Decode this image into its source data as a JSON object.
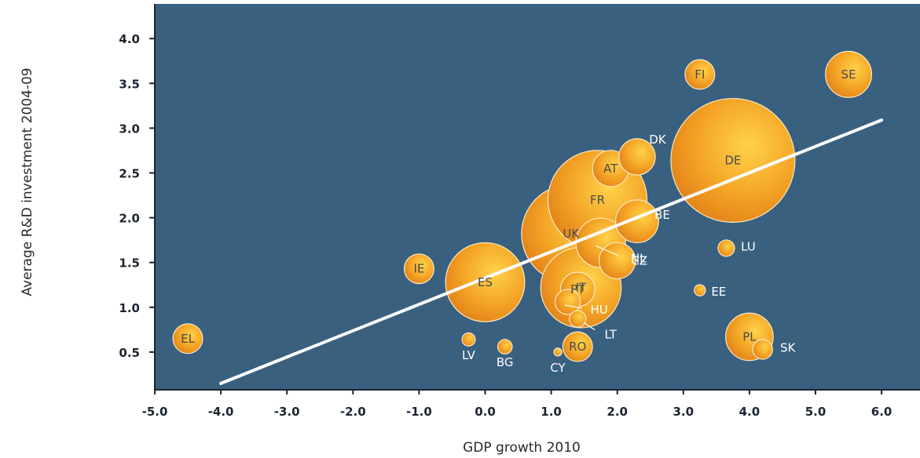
{
  "chart_data": {
    "type": "scatter",
    "title": "",
    "xlabel": "GDP growth 2010",
    "ylabel": "Average R&D investment 2004-09",
    "xlim": [
      -5.0,
      6.0
    ],
    "ylim": [
      0.0,
      4.3
    ],
    "x_ticks": [
      "-5.0",
      "-4.0",
      "-3.0",
      "-2.0",
      "-1.0",
      "0.0",
      "1.0",
      "2.0",
      "3.0",
      "4.0",
      "5.0",
      "6.0"
    ],
    "y_ticks": [
      "0.5",
      "1.0",
      "1.5",
      "2.0",
      "2.5",
      "3.0",
      "3.5",
      "4.0"
    ],
    "grid": false,
    "colors": {
      "plot_background": "#3a6080",
      "bubble_center": "#ffd24a",
      "bubble_edge": "#e07e18",
      "trendline": "#ffffff"
    },
    "points": [
      {
        "label": "EL",
        "x": -4.5,
        "y": 0.65,
        "size": 0.45,
        "label_inside": true
      },
      {
        "label": "LV",
        "x": -0.25,
        "y": 0.64,
        "size": 0.2,
        "label_inside": false
      },
      {
        "label": "BG",
        "x": 0.3,
        "y": 0.56,
        "size": 0.22,
        "label_inside": false
      },
      {
        "label": "CY",
        "x": 1.1,
        "y": 0.5,
        "size": 0.12,
        "label_inside": false
      },
      {
        "label": "RO",
        "x": 1.4,
        "y": 0.56,
        "size": 0.45,
        "label_inside": true
      },
      {
        "label": "IE",
        "x": -1.0,
        "y": 1.43,
        "size": 0.45,
        "label_inside": true
      },
      {
        "label": "ES",
        "x": 0.0,
        "y": 1.28,
        "size": 1.2,
        "label_inside": true
      },
      {
        "label": "IT",
        "x": 1.45,
        "y": 1.22,
        "size": 1.22,
        "label_inside": true
      },
      {
        "label": "PT",
        "x": 1.4,
        "y": 1.2,
        "size": 0.52,
        "label_inside": true
      },
      {
        "label": "HU",
        "x": 1.25,
        "y": 1.06,
        "size": 0.38,
        "label_inside": false
      },
      {
        "label": "LT",
        "x": 1.4,
        "y": 0.87,
        "size": 0.25,
        "label_inside": false
      },
      {
        "label": "CZ",
        "x": 2.0,
        "y": 1.52,
        "size": 0.55,
        "label_inside": false
      },
      {
        "label": "NL",
        "x": 1.75,
        "y": 1.72,
        "size": 0.75,
        "label_inside": false
      },
      {
        "label": "BE",
        "x": 2.3,
        "y": 1.96,
        "size": 0.65,
        "label_inside": false
      },
      {
        "label": "UK",
        "x": 1.3,
        "y": 1.82,
        "size": 1.5,
        "label_inside": true
      },
      {
        "label": "FR",
        "x": 1.7,
        "y": 2.2,
        "size": 1.5,
        "label_inside": true
      },
      {
        "label": "AT",
        "x": 1.9,
        "y": 2.55,
        "size": 0.55,
        "label_inside": true
      },
      {
        "label": "DK",
        "x": 2.3,
        "y": 2.68,
        "size": 0.55,
        "label_inside": false
      },
      {
        "label": "DE",
        "x": 3.75,
        "y": 2.64,
        "size": 1.88,
        "label_inside": true
      },
      {
        "label": "FI",
        "x": 3.25,
        "y": 3.6,
        "size": 0.45,
        "label_inside": true
      },
      {
        "label": "SE",
        "x": 5.5,
        "y": 3.6,
        "size": 0.7,
        "label_inside": true
      },
      {
        "label": "LU",
        "x": 3.65,
        "y": 1.66,
        "size": 0.25,
        "label_inside": false
      },
      {
        "label": "EE",
        "x": 3.25,
        "y": 1.19,
        "size": 0.17,
        "label_inside": false
      },
      {
        "label": "PL",
        "x": 4.0,
        "y": 0.67,
        "size": 0.72,
        "label_inside": true
      },
      {
        "label": "SK",
        "x": 4.2,
        "y": 0.53,
        "size": 0.3,
        "label_inside": false
      }
    ],
    "trendline": {
      "x": [
        -4.0,
        6.0
      ],
      "y": [
        0.15,
        3.09
      ]
    }
  }
}
